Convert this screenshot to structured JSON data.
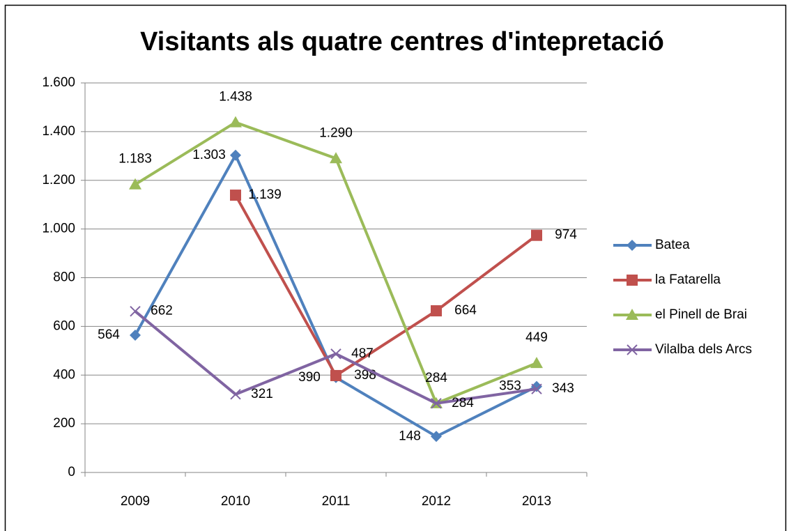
{
  "chart_data": {
    "type": "line",
    "title": "Visitants als quatre centres d'intepretació",
    "categories": [
      "2009",
      "2010",
      "2011",
      "2012",
      "2013"
    ],
    "ylim": [
      0,
      1600
    ],
    "yticks": [
      0,
      200,
      400,
      600,
      800,
      {
        "value": 1000,
        "label": "1.000"
      },
      {
        "value": 1200,
        "label": "1.200"
      },
      {
        "value": 1400,
        "label": "1.400"
      },
      {
        "value": 1600,
        "label": "1.600"
      }
    ],
    "grid": true,
    "legend": "right",
    "series": [
      {
        "name": "Batea",
        "color": "#4f81bd",
        "marker": "diamond",
        "values": [
          564,
          1303,
          390,
          148,
          353
        ],
        "value_labels": [
          "564",
          "1.303",
          "390",
          "148",
          "353"
        ]
      },
      {
        "name": "la Fatarella",
        "color": "#c0504d",
        "marker": "square",
        "values": [
          null,
          1139,
          398,
          664,
          974
        ],
        "value_labels": [
          null,
          "1.139",
          "398",
          "664",
          "974"
        ]
      },
      {
        "name": "el Pinell de Brai",
        "color": "#9bbb59",
        "marker": "triangle",
        "values": [
          1183,
          1438,
          1290,
          284,
          449
        ],
        "value_labels": [
          "1.183",
          "1.438",
          "1.290",
          "284",
          "449"
        ]
      },
      {
        "name": "Vilalba dels Arcs",
        "color": "#8064a2",
        "marker": "x",
        "values": [
          662,
          321,
          487,
          284,
          343
        ],
        "value_labels": [
          "662",
          "321",
          "487",
          "284",
          "343"
        ]
      }
    ]
  }
}
